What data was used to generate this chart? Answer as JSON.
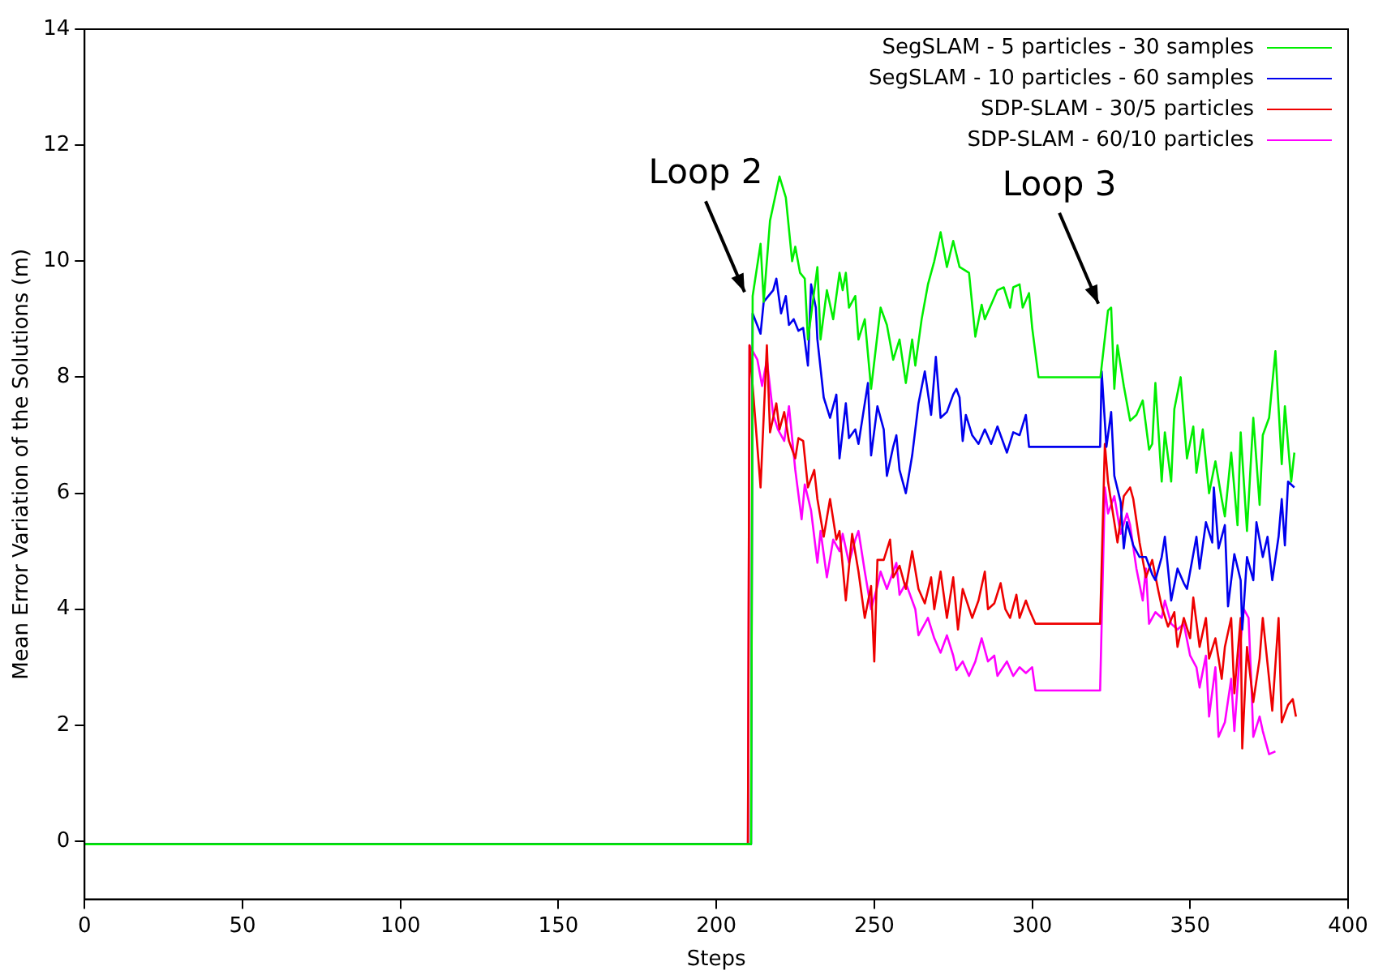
{
  "chart_data": {
    "type": "line",
    "xlabel": "Steps",
    "ylabel": "Mean Error Variation of the Solutions (m)",
    "xlim": [
      0,
      400
    ],
    "xticks": [
      0,
      50,
      100,
      150,
      200,
      250,
      300,
      350,
      400
    ],
    "ylim": [
      -1,
      14
    ],
    "yticks": [
      0,
      2,
      4,
      6,
      8,
      10,
      12,
      14
    ],
    "grid": false,
    "legend": "top right",
    "marker": "none",
    "line_style": "solid",
    "annotations": [
      {
        "text": "Loop 2",
        "x": 211,
        "y": 9.3
      },
      {
        "text": "Loop 3",
        "x": 323,
        "y": 9.1
      }
    ],
    "series": [
      {
        "name": "SegSLAM - 5 particles - 30 samples",
        "color": "#00ee00",
        "x": [
          0,
          211,
          211.5,
          214,
          215,
          217,
          220,
          222,
          224,
          225,
          226.5,
          228,
          229,
          232,
          233,
          235,
          237,
          239,
          240,
          241,
          242,
          244,
          245,
          247,
          249,
          252,
          254,
          256,
          258,
          260,
          262,
          263,
          265,
          267,
          269,
          271,
          273,
          275,
          277,
          280,
          282,
          284,
          285,
          287,
          289,
          291,
          293,
          294,
          296,
          297,
          299,
          300,
          302,
          321.6,
          324,
          325,
          326,
          327,
          329,
          331,
          333,
          335,
          337,
          338,
          339,
          341,
          342,
          344,
          345,
          347,
          349,
          351,
          352,
          354,
          356,
          358,
          360,
          361,
          363,
          365,
          366,
          368,
          370,
          372,
          373,
          375,
          377,
          379,
          380,
          382,
          383
        ],
        "values": [
          -0.05,
          -0.05,
          9.4,
          10.3,
          9.3,
          10.7,
          11.46,
          11.1,
          10.0,
          10.25,
          9.8,
          9.7,
          8.65,
          9.9,
          8.65,
          9.5,
          9.0,
          9.8,
          9.5,
          9.8,
          9.2,
          9.4,
          8.65,
          9.0,
          7.8,
          9.2,
          8.9,
          8.3,
          8.65,
          7.9,
          8.65,
          8.2,
          9.0,
          9.6,
          10.0,
          10.5,
          9.9,
          10.35,
          9.9,
          9.8,
          8.7,
          9.25,
          9.0,
          9.25,
          9.5,
          9.55,
          9.2,
          9.55,
          9.6,
          9.2,
          9.45,
          8.85,
          8.0,
          8.0,
          9.15,
          9.2,
          7.8,
          8.55,
          7.85,
          7.25,
          7.35,
          7.6,
          6.75,
          6.85,
          7.9,
          6.2,
          7.05,
          6.2,
          7.45,
          8.0,
          6.6,
          7.15,
          6.35,
          7.1,
          6.0,
          6.55,
          5.9,
          5.6,
          6.7,
          5.45,
          7.05,
          5.35,
          7.3,
          5.8,
          7.0,
          7.3,
          8.45,
          6.5,
          7.5,
          6.2,
          6.7
        ]
      },
      {
        "name": "SegSLAM - 10 particles - 60 samples",
        "color": "#0000ee",
        "x": [
          0,
          211,
          211.5,
          214,
          215,
          218,
          219,
          220.5,
          222,
          223,
          224.5,
          226,
          227.5,
          229,
          230,
          231.5,
          232,
          234,
          236,
          238,
          239,
          241,
          242,
          244,
          245,
          248,
          249,
          251,
          253,
          254,
          256,
          257,
          258,
          260,
          262,
          264,
          266,
          268,
          269.5,
          271,
          273,
          275,
          276,
          277,
          278,
          279,
          281,
          283,
          285,
          287,
          289,
          291,
          292,
          294,
          296,
          298,
          299,
          321.5,
          322,
          323.5,
          325,
          326,
          328,
          329,
          330,
          332,
          334,
          336,
          338,
          339,
          341,
          342,
          344,
          346,
          348,
          349,
          352,
          353,
          355,
          357,
          357.5,
          359,
          361,
          362,
          364,
          366,
          366.5,
          368,
          370,
          371,
          373,
          374.5,
          376,
          378,
          379,
          380,
          381,
          383
        ],
        "values": [
          -0.05,
          -0.05,
          9.1,
          8.75,
          9.3,
          9.5,
          9.7,
          9.1,
          9.4,
          8.9,
          9.0,
          8.8,
          8.85,
          8.2,
          9.6,
          9.2,
          8.65,
          7.65,
          7.3,
          7.7,
          6.6,
          7.55,
          6.95,
          7.1,
          6.85,
          7.9,
          6.65,
          7.5,
          7.1,
          6.3,
          6.8,
          7.0,
          6.4,
          6.0,
          6.65,
          7.55,
          8.1,
          7.35,
          8.35,
          7.3,
          7.4,
          7.7,
          7.8,
          7.65,
          6.9,
          7.35,
          7.0,
          6.85,
          7.1,
          6.85,
          7.15,
          6.85,
          6.7,
          7.05,
          7.0,
          7.35,
          6.8,
          6.8,
          8.1,
          6.8,
          7.4,
          6.3,
          5.85,
          5.05,
          5.5,
          5.1,
          4.9,
          4.9,
          4.6,
          4.5,
          4.9,
          5.25,
          4.15,
          4.7,
          4.45,
          4.35,
          5.25,
          4.7,
          5.5,
          5.15,
          6.1,
          5.05,
          5.45,
          4.05,
          4.95,
          4.5,
          3.65,
          4.9,
          4.5,
          5.5,
          4.9,
          5.25,
          4.5,
          5.25,
          5.9,
          5.1,
          6.2,
          6.1
        ]
      },
      {
        "name": "SDP-SLAM - 30/5 particles",
        "color": "#ee0000",
        "x": [
          0,
          210,
          210.5,
          214,
          216,
          217,
          219,
          220,
          221.5,
          223,
          225,
          226,
          227.5,
          229,
          231,
          232,
          234,
          236,
          238,
          239,
          241,
          243,
          245,
          247,
          249,
          250,
          251,
          253,
          255,
          256,
          258,
          260,
          262,
          264,
          266,
          268,
          269,
          271,
          273,
          275,
          276.5,
          278,
          281,
          283,
          285,
          286,
          288,
          290,
          291.5,
          293,
          295,
          296,
          298,
          299,
          301,
          321.5,
          323,
          324,
          326,
          327,
          329,
          331,
          332,
          334,
          336,
          338,
          340,
          341,
          343,
          345,
          346,
          348,
          350,
          351,
          353,
          355,
          356,
          358,
          360,
          361,
          363,
          364,
          366,
          366.5,
          368,
          370,
          372,
          373,
          375,
          376,
          378,
          379,
          381,
          382.5,
          383.5
        ],
        "values": [
          -0.05,
          -0.05,
          8.55,
          6.1,
          8.55,
          7.05,
          7.55,
          7.1,
          7.4,
          6.9,
          6.6,
          6.95,
          6.9,
          6.1,
          6.4,
          5.9,
          5.25,
          5.9,
          5.2,
          5.35,
          4.15,
          5.3,
          4.65,
          3.85,
          4.4,
          3.1,
          4.85,
          4.85,
          5.2,
          4.55,
          4.75,
          4.35,
          5.0,
          4.35,
          4.1,
          4.55,
          4.0,
          4.65,
          3.85,
          4.55,
          3.65,
          4.35,
          3.85,
          4.15,
          4.65,
          4.0,
          4.1,
          4.45,
          4.0,
          3.85,
          4.25,
          3.85,
          4.15,
          4.0,
          3.75,
          3.75,
          6.85,
          6.2,
          5.5,
          5.15,
          5.95,
          6.1,
          5.9,
          5.15,
          4.55,
          4.85,
          4.3,
          4.05,
          3.7,
          3.95,
          3.35,
          3.85,
          3.5,
          4.2,
          3.35,
          3.85,
          3.15,
          3.5,
          2.8,
          3.35,
          3.85,
          2.55,
          3.85,
          1.6,
          3.35,
          2.4,
          3.15,
          3.85,
          2.8,
          2.25,
          3.85,
          2.05,
          2.35,
          2.45,
          2.15
        ]
      },
      {
        "name": "SDP-SLAM - 60/10 particles",
        "color": "#ff00ff",
        "x": [
          0,
          210,
          210.5,
          213,
          214.5,
          216,
          218,
          219.5,
          221.5,
          223,
          225,
          227,
          228,
          230,
          232,
          233,
          235,
          237,
          239,
          240,
          242,
          244,
          245,
          247,
          249,
          251,
          252,
          254,
          257,
          258,
          260,
          263,
          264,
          267,
          269,
          271,
          273,
          275,
          276,
          278,
          280,
          282,
          284,
          286,
          288,
          289,
          292,
          294,
          296,
          298,
          300,
          301,
          321.5,
          323,
          324,
          326,
          328,
          330,
          331,
          333,
          335,
          336,
          337,
          339,
          341,
          342,
          344,
          346,
          348,
          350,
          352,
          353,
          355,
          356,
          358,
          359,
          361,
          363,
          364,
          366,
          367,
          368.5,
          369.5,
          370,
          372,
          373,
          375,
          377
        ],
        "values": [
          -0.05,
          -0.05,
          8.55,
          8.3,
          7.85,
          8.3,
          7.35,
          7.1,
          6.9,
          7.5,
          6.4,
          5.55,
          6.15,
          5.7,
          4.8,
          5.35,
          4.55,
          5.2,
          5.0,
          5.3,
          4.8,
          5.2,
          5.35,
          4.65,
          4.0,
          4.4,
          4.65,
          4.35,
          4.8,
          4.25,
          4.45,
          4.0,
          3.55,
          3.85,
          3.5,
          3.25,
          3.55,
          3.2,
          2.95,
          3.1,
          2.85,
          3.1,
          3.5,
          3.1,
          3.2,
          2.85,
          3.1,
          2.85,
          3.0,
          2.9,
          3.0,
          2.6,
          2.6,
          6.1,
          5.65,
          5.95,
          5.3,
          5.65,
          5.45,
          4.7,
          4.15,
          4.7,
          3.75,
          3.95,
          3.85,
          4.15,
          3.75,
          3.65,
          3.75,
          3.2,
          3.0,
          2.65,
          3.2,
          2.15,
          3.0,
          1.8,
          2.05,
          2.8,
          1.9,
          3.45,
          4.0,
          3.85,
          2.55,
          1.8,
          2.15,
          1.9,
          1.5,
          1.55
        ]
      }
    ]
  }
}
